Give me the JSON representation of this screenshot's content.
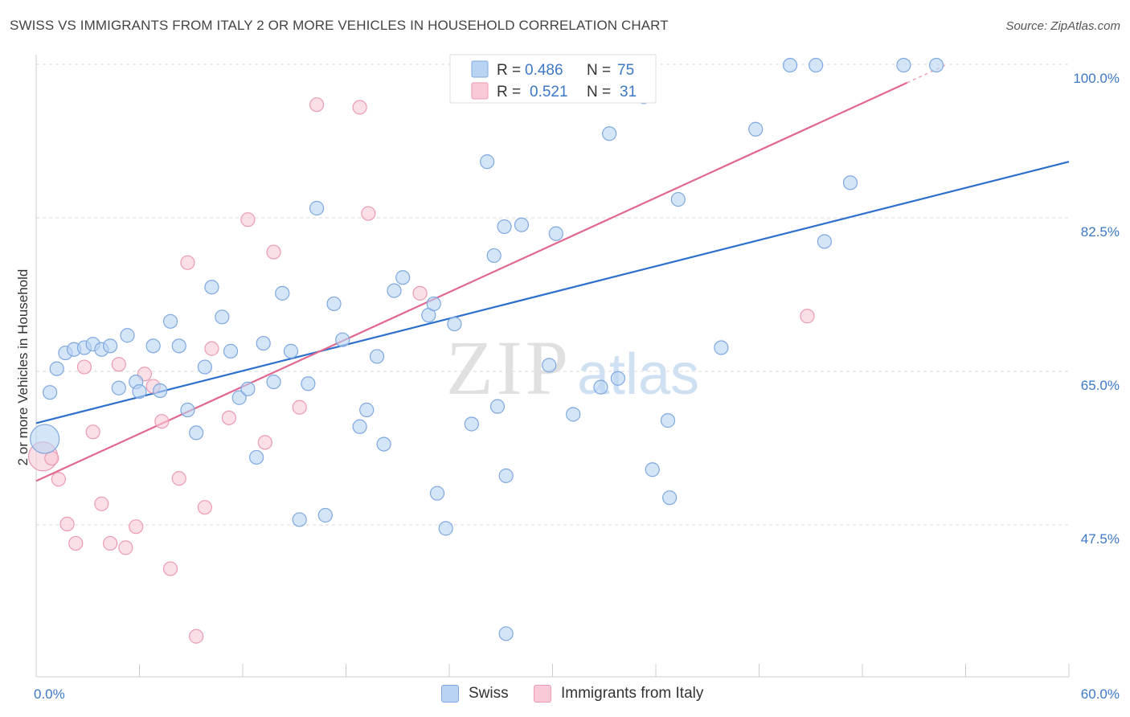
{
  "title": "SWISS VS IMMIGRANTS FROM ITALY 2 OR MORE VEHICLES IN HOUSEHOLD CORRELATION CHART",
  "source": "Source: ZipAtlas.com",
  "watermark": {
    "zip": "ZIP",
    "atlas": "atlas"
  },
  "colors": {
    "swiss_fill": "#b9d3f3",
    "swiss_stroke": "#7ea8df",
    "swiss_line": "#2c6fcd",
    "italy_fill": "#f8c9d6",
    "italy_stroke": "#eb9ab2",
    "italy_line": "#e0688f",
    "tick_text": "#3d78c6",
    "grid": "#d9d9d9"
  },
  "legend": {
    "r_label": "R =",
    "n_label": "N =",
    "swiss": {
      "r": "0.486",
      "n": "75"
    },
    "italy": {
      "r": "0.521",
      "n": "31"
    }
  },
  "chart_data": {
    "type": "scatter",
    "xlabel": "",
    "ylabel": "2 or more Vehicles in Household",
    "xlim": [
      0,
      60
    ],
    "ylim": [
      30,
      102
    ],
    "x_tick_labels": [
      "0.0%",
      "60.0%"
    ],
    "y_ticks": [
      47.5,
      65.0,
      82.5,
      100.0
    ],
    "y_tick_labels": [
      "47.5%",
      "65.0%",
      "82.5%",
      "100.0%"
    ],
    "grid": true,
    "series": [
      {
        "name": "Swiss",
        "points": [
          [
            0.5,
            57.3
          ],
          [
            0.8,
            62.6
          ],
          [
            1.2,
            65.3
          ],
          [
            1.7,
            67.1
          ],
          [
            2.2,
            67.5
          ],
          [
            2.8,
            67.7
          ],
          [
            3.3,
            68.1
          ],
          [
            3.8,
            67.5
          ],
          [
            4.3,
            67.9
          ],
          [
            4.8,
            63.1
          ],
          [
            5.3,
            69.1
          ],
          [
            5.8,
            63.8
          ],
          [
            6.0,
            62.7
          ],
          [
            6.8,
            67.9
          ],
          [
            7.2,
            62.8
          ],
          [
            7.8,
            70.7
          ],
          [
            8.3,
            67.9
          ],
          [
            8.8,
            60.6
          ],
          [
            9.3,
            58.0
          ],
          [
            9.8,
            65.5
          ],
          [
            10.2,
            74.6
          ],
          [
            10.8,
            71.2
          ],
          [
            11.3,
            67.3
          ],
          [
            11.8,
            62.0
          ],
          [
            12.3,
            63.0
          ],
          [
            12.8,
            55.2
          ],
          [
            13.2,
            68.2
          ],
          [
            13.8,
            63.8
          ],
          [
            14.3,
            73.9
          ],
          [
            14.8,
            67.3
          ],
          [
            15.3,
            48.1
          ],
          [
            15.8,
            63.6
          ],
          [
            16.3,
            83.6
          ],
          [
            16.8,
            48.6
          ],
          [
            17.3,
            72.7
          ],
          [
            17.8,
            68.6
          ],
          [
            18.8,
            58.7
          ],
          [
            19.2,
            60.6
          ],
          [
            19.8,
            66.7
          ],
          [
            20.2,
            56.7
          ],
          [
            20.8,
            74.2
          ],
          [
            21.3,
            75.7
          ],
          [
            22.8,
            71.4
          ],
          [
            23.1,
            72.7
          ],
          [
            23.3,
            51.1
          ],
          [
            23.8,
            47.1
          ],
          [
            24.3,
            70.4
          ],
          [
            25.3,
            59.0
          ],
          [
            26.2,
            88.9
          ],
          [
            26.6,
            78.2
          ],
          [
            26.8,
            61.0
          ],
          [
            27.2,
            81.5
          ],
          [
            27.3,
            53.1
          ],
          [
            27.3,
            35.1
          ],
          [
            28.2,
            81.7
          ],
          [
            29.8,
            65.7
          ],
          [
            30.2,
            80.7
          ],
          [
            31.2,
            60.1
          ],
          [
            31.8,
            99.9
          ],
          [
            32.8,
            63.2
          ],
          [
            33.3,
            92.1
          ],
          [
            33.8,
            64.2
          ],
          [
            35.8,
            53.8
          ],
          [
            36.7,
            59.4
          ],
          [
            36.8,
            50.6
          ],
          [
            37.3,
            84.6
          ],
          [
            39.8,
            67.7
          ],
          [
            41.8,
            92.6
          ],
          [
            43.8,
            99.9
          ],
          [
            45.3,
            99.9
          ],
          [
            45.8,
            79.8
          ],
          [
            47.3,
            86.5
          ],
          [
            50.4,
            99.9
          ],
          [
            52.3,
            99.9
          ],
          [
            35.3,
            96.3
          ]
        ],
        "sizes": {
          "0": "large"
        },
        "trend": {
          "x": [
            0,
            60
          ],
          "y": [
            59.1,
            88.9
          ]
        }
      },
      {
        "name": "Immigrants from Italy",
        "points": [
          [
            0.4,
            55.3
          ],
          [
            0.9,
            55.1
          ],
          [
            1.3,
            52.7
          ],
          [
            1.8,
            47.6
          ],
          [
            2.3,
            45.4
          ],
          [
            2.8,
            65.5
          ],
          [
            3.3,
            58.1
          ],
          [
            3.8,
            49.9
          ],
          [
            4.3,
            45.4
          ],
          [
            4.8,
            65.8
          ],
          [
            5.2,
            44.9
          ],
          [
            5.8,
            47.3
          ],
          [
            6.3,
            64.7
          ],
          [
            6.8,
            63.3
          ],
          [
            7.3,
            59.3
          ],
          [
            7.8,
            42.5
          ],
          [
            8.3,
            52.8
          ],
          [
            8.8,
            77.4
          ],
          [
            9.3,
            34.8
          ],
          [
            9.8,
            49.5
          ],
          [
            10.2,
            67.6
          ],
          [
            11.2,
            59.7
          ],
          [
            12.3,
            82.3
          ],
          [
            13.3,
            56.9
          ],
          [
            13.8,
            78.6
          ],
          [
            15.3,
            60.9
          ],
          [
            16.3,
            95.4
          ],
          [
            18.8,
            95.1
          ],
          [
            19.3,
            83.0
          ],
          [
            22.3,
            73.9
          ],
          [
            44.8,
            71.3
          ]
        ],
        "sizes": {
          "0": "large"
        },
        "trend": {
          "x": [
            0,
            50.6
          ],
          "y": [
            52.5,
            97.9
          ]
        }
      }
    ]
  },
  "bottom_legend": [
    {
      "label": "Swiss"
    },
    {
      "label": "Immigrants from Italy"
    }
  ]
}
